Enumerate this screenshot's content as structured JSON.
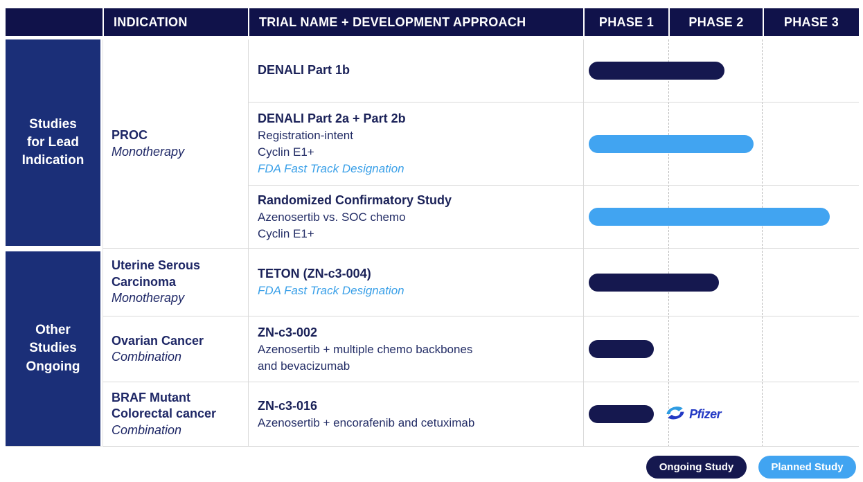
{
  "header": {
    "group": "",
    "indication": "INDICATION",
    "trial": "TRIAL NAME + DEVELOPMENT APPROACH",
    "phase1": "PHASE 1",
    "phase2": "PHASE 2",
    "phase3": "PHASE 3"
  },
  "sections": [
    {
      "label": "Studies\nfor Lead\nIndication",
      "indication": {
        "name": "PROC",
        "approach": "Monotherapy"
      },
      "rows": [
        {
          "trial": {
            "title": "DENALI Part 1b"
          },
          "bar": {
            "type": "ongoing",
            "start_pct": 0.018,
            "end_pct": 0.512
          }
        },
        {
          "trial": {
            "title": "DENALI Part 2a + Part 2b",
            "line1": "Registration-intent",
            "line2": "Cyclin E1+",
            "fda": "FDA Fast Track Designation"
          },
          "bar": {
            "type": "planned",
            "start_pct": 0.018,
            "end_pct": 0.616
          }
        },
        {
          "trial": {
            "title": "Randomized Confirmatory Study",
            "line1": "Azenosertib vs. SOC chemo",
            "line2": "Cyclin E1+"
          },
          "bar": {
            "type": "planned",
            "start_pct": 0.018,
            "end_pct": 0.894
          }
        }
      ]
    },
    {
      "label": "Other\nStudies\nOngoing",
      "rows": [
        {
          "indication": {
            "name": "Uterine Serous\nCarcinoma",
            "approach": "Monotherapy"
          },
          "trial": {
            "title": "TETON (ZN-c3-004)",
            "fda": "FDA Fast Track Designation"
          },
          "bar": {
            "type": "ongoing",
            "start_pct": 0.018,
            "end_pct": 0.49
          }
        },
        {
          "indication": {
            "name": "Ovarian Cancer",
            "approach": "Combination"
          },
          "trial": {
            "title": "ZN-c3-002",
            "line1": "Azenosertib + multiple chemo backbones\nand bevacizumab"
          },
          "bar": {
            "type": "ongoing",
            "start_pct": 0.018,
            "end_pct": 0.254
          }
        },
        {
          "indication": {
            "name": "BRAF Mutant\nColorectal cancer",
            "approach": "Combination"
          },
          "trial": {
            "title": "ZN-c3-016",
            "line1": "Azenosertib + encorafenib and cetuximab"
          },
          "bar": {
            "type": "ongoing",
            "start_pct": 0.018,
            "end_pct": 0.254
          },
          "partner_logo": "Pfizer"
        }
      ]
    }
  ],
  "legend": [
    {
      "label": "Ongoing Study",
      "color": "#15184F"
    },
    {
      "label": "Planned Study",
      "color": "#41A4F1"
    }
  ],
  "colors": {
    "header_bg": "#10124A",
    "sidebar_bg": "#1B2F78",
    "ongoing_bar": "#15184F",
    "planned_bar": "#41A4F1",
    "fda_text": "#3AA0E8",
    "body_text": "#1E2766",
    "grid_border": "#D9D9D9",
    "pfizer_blue": "#2339C4",
    "pfizer_light_blue": "#2F9CE2"
  },
  "chart_data": {
    "type": "bar",
    "variant": "gantt",
    "x_axis_labels": [
      "PHASE 1",
      "PHASE 2",
      "PHASE 3"
    ],
    "x_range_phases": [
      1,
      4
    ],
    "categories": [
      "DENALI Part 1b",
      "DENALI Part 2a + Part 2b",
      "Randomized Confirmatory Study",
      "TETON (ZN-c3-004)",
      "ZN-c3-002",
      "ZN-c3-016"
    ],
    "series": [
      {
        "name": "DENALI Part 1b",
        "section": "Studies for Lead Indication",
        "indication": "PROC Monotherapy",
        "status": "Ongoing Study",
        "phase_start": 1.0,
        "phase_end": 2.6
      },
      {
        "name": "DENALI Part 2a + Part 2b",
        "section": "Studies for Lead Indication",
        "indication": "PROC Monotherapy",
        "status": "Planned Study",
        "phase_start": 1.0,
        "phase_end": 2.9
      },
      {
        "name": "Randomized Confirmatory Study",
        "section": "Studies for Lead Indication",
        "indication": "PROC Monotherapy",
        "status": "Planned Study",
        "phase_start": 1.0,
        "phase_end": 3.7
      },
      {
        "name": "TETON (ZN-c3-004)",
        "section": "Other Studies Ongoing",
        "indication": "Uterine Serous Carcinoma Monotherapy",
        "status": "Ongoing Study",
        "phase_start": 1.0,
        "phase_end": 2.5
      },
      {
        "name": "ZN-c3-002",
        "section": "Other Studies Ongoing",
        "indication": "Ovarian Cancer Combination",
        "status": "Ongoing Study",
        "phase_start": 1.0,
        "phase_end": 1.8
      },
      {
        "name": "ZN-c3-016",
        "section": "Other Studies Ongoing",
        "indication": "BRAF Mutant Colorectal cancer Combination",
        "status": "Ongoing Study",
        "phase_start": 1.0,
        "phase_end": 1.8
      }
    ],
    "legend": [
      "Ongoing Study",
      "Planned Study"
    ],
    "legend_position": "bottom-right",
    "grid": "dashed vertical phase dividers"
  }
}
